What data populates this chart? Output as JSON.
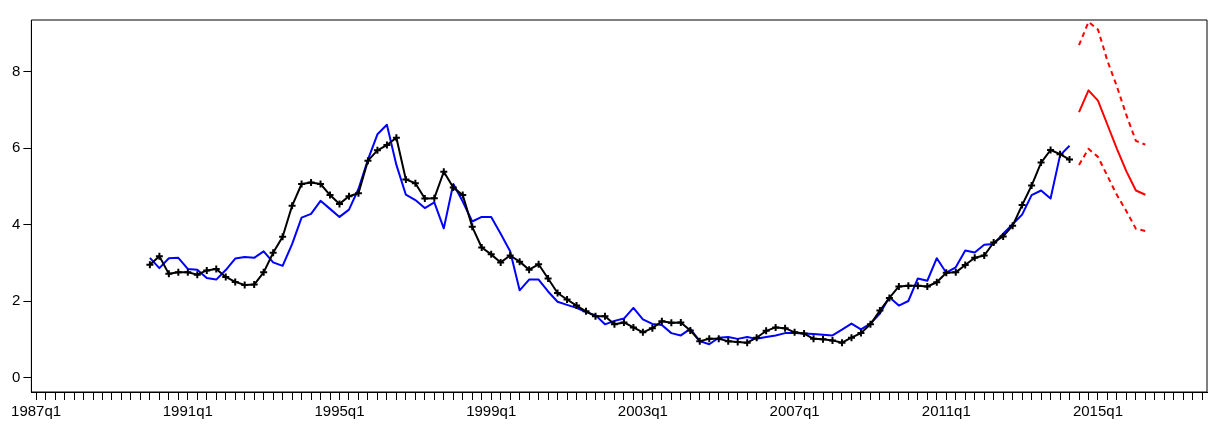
{
  "chart_data": {
    "type": "line",
    "ylim": [
      -0.38,
      9.35
    ],
    "yticks": [
      0,
      2,
      4,
      6,
      8
    ],
    "categories": [
      "1987q1",
      null,
      null,
      null,
      null,
      null,
      null,
      null,
      null,
      null,
      null,
      null,
      null,
      null,
      null,
      null,
      "1991q1",
      null,
      null,
      null,
      null,
      null,
      null,
      null,
      null,
      null,
      null,
      null,
      null,
      null,
      null,
      null,
      "1995q1",
      null,
      null,
      null,
      null,
      null,
      null,
      null,
      null,
      null,
      null,
      null,
      null,
      null,
      null,
      null,
      "1999q1",
      null,
      null,
      null,
      null,
      null,
      null,
      null,
      null,
      null,
      null,
      null,
      null,
      null,
      null,
      null,
      "2003q1",
      null,
      null,
      null,
      null,
      null,
      null,
      null,
      null,
      null,
      null,
      null,
      null,
      null,
      null,
      null,
      "2007q1",
      null,
      null,
      null,
      null,
      null,
      null,
      null,
      null,
      null,
      null,
      null,
      null,
      null,
      null,
      null,
      "2011q1",
      null,
      null,
      null,
      null,
      null,
      null,
      null,
      null,
      null,
      null,
      null,
      null,
      null,
      null,
      null,
      "2015q1",
      null,
      null,
      null,
      null,
      null,
      null,
      null,
      null,
      null,
      null,
      null
    ],
    "series": [
      {
        "color": "#000000",
        "marker": "cross",
        "values": [
          null,
          null,
          null,
          null,
          null,
          null,
          null,
          null,
          null,
          null,
          null,
          null,
          2.95,
          3.17,
          2.71,
          2.75,
          2.75,
          2.69,
          2.8,
          2.84,
          2.63,
          2.5,
          2.42,
          2.43,
          2.75,
          3.26,
          3.68,
          4.49,
          5.06,
          5.1,
          5.06,
          4.77,
          4.54,
          4.74,
          4.82,
          5.67,
          5.94,
          6.08,
          6.27,
          5.18,
          5.08,
          4.68,
          4.69,
          5.38,
          4.97,
          4.77,
          3.94,
          3.4,
          3.22,
          3.01,
          3.19,
          3.03,
          2.82,
          2.96,
          2.59,
          2.21,
          2.04,
          1.88,
          1.73,
          1.6,
          1.6,
          1.39,
          1.44,
          1.31,
          1.18,
          1.29,
          1.47,
          1.43,
          1.44,
          1.23,
          0.95,
          1.01,
          1.01,
          0.95,
          0.93,
          0.91,
          1.04,
          1.22,
          1.31,
          1.29,
          1.18,
          1.15,
          1.01,
          1.0,
          0.97,
          0.91,
          1.04,
          1.16,
          1.39,
          1.75,
          2.08,
          2.38,
          2.4,
          2.4,
          2.38,
          2.49,
          2.74,
          2.75,
          2.94,
          3.13,
          3.19,
          3.53,
          3.69,
          3.97,
          4.51,
          5.02,
          5.62,
          5.95,
          5.84,
          5.7,
          null,
          null,
          null,
          null,
          null,
          null,
          null,
          null,
          null,
          null,
          null,
          null,
          null,
          null
        ]
      },
      {
        "color": "#0000ff",
        "values": [
          null,
          null,
          null,
          null,
          null,
          null,
          null,
          null,
          null,
          null,
          null,
          null,
          3.13,
          2.86,
          3.12,
          3.13,
          2.84,
          2.82,
          2.6,
          2.56,
          2.81,
          3.11,
          3.15,
          3.13,
          3.3,
          3.01,
          2.92,
          3.49,
          4.18,
          4.28,
          4.62,
          4.41,
          4.2,
          4.39,
          4.93,
          5.7,
          6.36,
          6.61,
          5.56,
          4.78,
          4.64,
          4.43,
          4.58,
          3.9,
          5.06,
          4.6,
          4.08,
          4.2,
          4.2,
          3.76,
          3.3,
          2.28,
          2.56,
          2.56,
          2.25,
          1.98,
          1.9,
          1.82,
          1.71,
          1.63,
          1.39,
          1.48,
          1.54,
          1.82,
          1.52,
          1.4,
          1.37,
          1.16,
          1.1,
          1.27,
          0.95,
          0.87,
          1.04,
          1.06,
          1.01,
          1.06,
          1.01,
          1.06,
          1.1,
          1.16,
          1.16,
          1.15,
          1.14,
          1.12,
          1.1,
          1.25,
          1.41,
          1.26,
          1.41,
          1.67,
          2.1,
          1.88,
          2.0,
          2.59,
          2.53,
          3.12,
          2.74,
          2.88,
          3.32,
          3.27,
          3.47,
          3.49,
          3.76,
          4.01,
          4.26,
          4.77,
          4.89,
          4.68,
          5.81,
          6.06,
          null,
          null,
          null,
          null,
          null,
          null,
          null,
          null,
          null,
          null,
          null,
          null,
          null,
          null
        ]
      },
      {
        "color": "#ff0000",
        "values": [
          null,
          null,
          null,
          null,
          null,
          null,
          null,
          null,
          null,
          null,
          null,
          null,
          null,
          null,
          null,
          null,
          null,
          null,
          null,
          null,
          null,
          null,
          null,
          null,
          null,
          null,
          null,
          null,
          null,
          null,
          null,
          null,
          null,
          null,
          null,
          null,
          null,
          null,
          null,
          null,
          null,
          null,
          null,
          null,
          null,
          null,
          null,
          null,
          null,
          null,
          null,
          null,
          null,
          null,
          null,
          null,
          null,
          null,
          null,
          null,
          null,
          null,
          null,
          null,
          null,
          null,
          null,
          null,
          null,
          null,
          null,
          null,
          null,
          null,
          null,
          null,
          null,
          null,
          null,
          null,
          null,
          null,
          null,
          null,
          null,
          null,
          null,
          null,
          null,
          null,
          null,
          null,
          null,
          null,
          null,
          null,
          null,
          null,
          null,
          null,
          null,
          null,
          null,
          null,
          null,
          null,
          null,
          null,
          null,
          null,
          6.94,
          7.51,
          7.24,
          6.61,
          5.98,
          5.39,
          4.89,
          4.78,
          null,
          null,
          null,
          null,
          null,
          null
        ]
      },
      {
        "color": "#ff0000",
        "line_style": "dashed",
        "values": [
          null,
          null,
          null,
          null,
          null,
          null,
          null,
          null,
          null,
          null,
          null,
          null,
          null,
          null,
          null,
          null,
          null,
          null,
          null,
          null,
          null,
          null,
          null,
          null,
          null,
          null,
          null,
          null,
          null,
          null,
          null,
          null,
          null,
          null,
          null,
          null,
          null,
          null,
          null,
          null,
          null,
          null,
          null,
          null,
          null,
          null,
          null,
          null,
          null,
          null,
          null,
          null,
          null,
          null,
          null,
          null,
          null,
          null,
          null,
          null,
          null,
          null,
          null,
          null,
          null,
          null,
          null,
          null,
          null,
          null,
          null,
          null,
          null,
          null,
          null,
          null,
          null,
          null,
          null,
          null,
          null,
          null,
          null,
          null,
          null,
          null,
          null,
          null,
          null,
          null,
          null,
          null,
          null,
          null,
          null,
          null,
          null,
          null,
          null,
          null,
          null,
          null,
          null,
          null,
          null,
          null,
          null,
          null,
          null,
          null,
          8.69,
          9.3,
          9.1,
          8.28,
          7.61,
          6.86,
          6.19,
          6.09,
          null,
          null,
          null,
          null,
          null,
          null
        ]
      },
      {
        "color": "#ff0000",
        "line_style": "dashed",
        "values": [
          null,
          null,
          null,
          null,
          null,
          null,
          null,
          null,
          null,
          null,
          null,
          null,
          null,
          null,
          null,
          null,
          null,
          null,
          null,
          null,
          null,
          null,
          null,
          null,
          null,
          null,
          null,
          null,
          null,
          null,
          null,
          null,
          null,
          null,
          null,
          null,
          null,
          null,
          null,
          null,
          null,
          null,
          null,
          null,
          null,
          null,
          null,
          null,
          null,
          null,
          null,
          null,
          null,
          null,
          null,
          null,
          null,
          null,
          null,
          null,
          null,
          null,
          null,
          null,
          null,
          null,
          null,
          null,
          null,
          null,
          null,
          null,
          null,
          null,
          null,
          null,
          null,
          null,
          null,
          null,
          null,
          null,
          null,
          null,
          null,
          null,
          null,
          null,
          null,
          null,
          null,
          null,
          null,
          null,
          null,
          null,
          null,
          null,
          null,
          null,
          null,
          null,
          null,
          null,
          null,
          null,
          null,
          null,
          null,
          null,
          5.56,
          5.98,
          5.77,
          5.27,
          4.77,
          4.35,
          3.89,
          3.83,
          null,
          null,
          null,
          null,
          null,
          null
        ]
      }
    ]
  }
}
